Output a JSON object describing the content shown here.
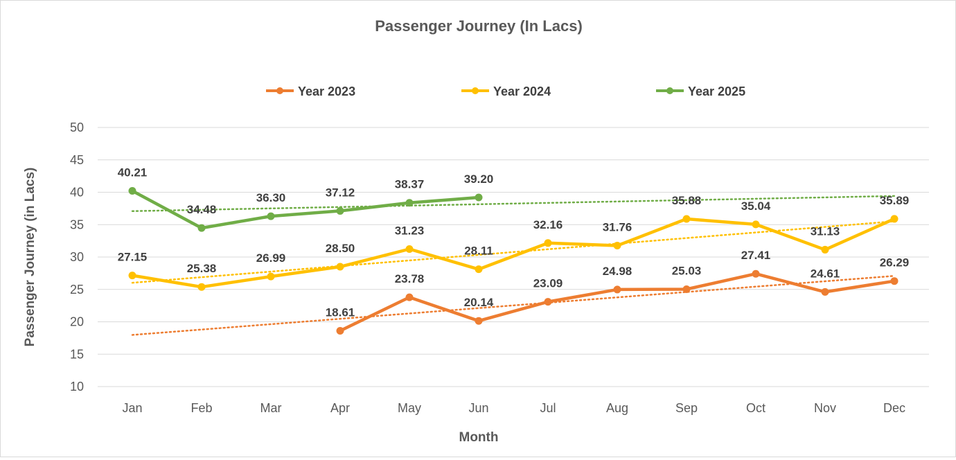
{
  "chart_data": {
    "type": "line",
    "title": "Passenger Journey (In Lacs)",
    "xlabel": "Month",
    "ylabel": "Passenger Journey (in Lacs)",
    "categories": [
      "Jan",
      "Feb",
      "Mar",
      "Apr",
      "May",
      "Jun",
      "Jul",
      "Aug",
      "Sep",
      "Oct",
      "Nov",
      "Dec"
    ],
    "ylim": [
      10,
      50
    ],
    "yticks": [
      10,
      15,
      20,
      25,
      30,
      35,
      40,
      45,
      50
    ],
    "grid": true,
    "legend_position": "top",
    "trendlines": true,
    "series": [
      {
        "name": "Year 2023",
        "color": "#ED7D31",
        "values": [
          null,
          null,
          null,
          18.61,
          23.78,
          20.14,
          23.09,
          24.98,
          25.03,
          27.41,
          24.61,
          26.29
        ],
        "labels": [
          "",
          "",
          "",
          "18.61",
          "23.78",
          "20.14",
          "23.09",
          "24.98",
          "25.03",
          "27.41",
          "24.61",
          "26.29"
        ]
      },
      {
        "name": "Year 2024",
        "color": "#FFC000",
        "values": [
          27.15,
          25.38,
          26.99,
          28.5,
          31.23,
          28.11,
          32.16,
          31.76,
          35.88,
          35.04,
          31.13,
          35.89
        ],
        "labels": [
          "27.15",
          "25.38",
          "26.99",
          "28.50",
          "31.23",
          "28.11",
          "32.16",
          "31.76",
          "35.88",
          "35.04",
          "31.13",
          "35.89"
        ]
      },
      {
        "name": "Year 2025",
        "color": "#70AD47",
        "values": [
          40.21,
          34.48,
          36.3,
          37.12,
          38.37,
          39.2,
          null,
          null,
          null,
          null,
          null,
          null
        ],
        "labels": [
          "40.21",
          "34.48",
          "36.30",
          "37.12",
          "38.37",
          "39.20",
          "",
          "",
          "",
          "",
          "",
          ""
        ]
      }
    ]
  }
}
